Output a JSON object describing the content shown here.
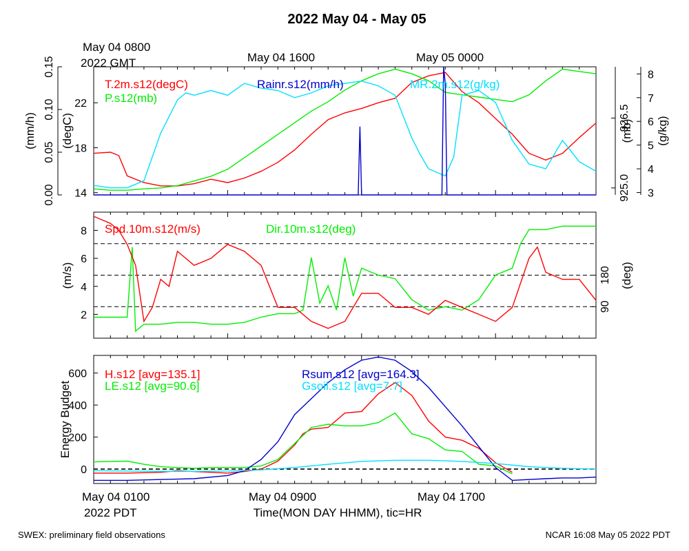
{
  "title": "2022 May 04 - May 05",
  "top_axis": {
    "start_label_line1": "May 04 0800",
    "start_label_line2": "2022 GMT",
    "tick_labels": [
      "May 04 1600",
      "May 05 0000"
    ]
  },
  "bottom_axis": {
    "start_label_line1": "May 04 0100",
    "start_label_line2": "2022 PDT",
    "tick_labels": [
      "May 04 0900",
      "May 04 1700"
    ],
    "xlabel": "Time(MON DAY HHMM), tic=HR"
  },
  "footer": {
    "left": "SWEX: preliminary field observations",
    "right": "NCAR 16:08 May 05 2022 PDT"
  },
  "colors": {
    "red": "#ff0000",
    "green": "#00ee00",
    "blue": "#0000cc",
    "cyan": "#00e0ff",
    "frame": "#000000"
  },
  "chart_data": [
    {
      "type": "line",
      "panel": "meteorology",
      "x_unit": "hours since May 04 0100 PDT",
      "x_range": [
        0,
        30
      ],
      "series": [
        {
          "name": "T.2m.s12(degC)",
          "axis": "degC",
          "color": "red",
          "x": [
            0,
            1,
            1.5,
            2,
            3,
            4,
            5,
            6,
            7,
            8,
            9,
            10,
            11,
            12,
            13,
            14,
            15,
            16,
            17,
            18,
            19,
            20,
            21,
            22,
            23,
            24,
            25,
            26,
            27,
            28,
            29,
            30
          ],
          "y": [
            17.5,
            17.6,
            17.3,
            15.5,
            14.9,
            14.6,
            14.6,
            14.8,
            15.2,
            14.9,
            15.3,
            15.9,
            16.7,
            17.8,
            19.2,
            20.5,
            21.1,
            21.5,
            22.0,
            22.4,
            23.8,
            24.4,
            24.7,
            23.0,
            22.0,
            20.6,
            19.2,
            17.5,
            16.9,
            17.5,
            18.9,
            20.2
          ]
        },
        {
          "name": "P.s12(mb)",
          "axis": "mb",
          "color": "green",
          "x": [
            0,
            1,
            2,
            3,
            4,
            5,
            6,
            7,
            8,
            9,
            10,
            11,
            12,
            13,
            14,
            15,
            16,
            17,
            17.5,
            18,
            19,
            20,
            21,
            22,
            23,
            24,
            25,
            26,
            27,
            28,
            29,
            30
          ],
          "y": [
            924.98,
            924.95,
            924.95,
            924.98,
            925.0,
            925.05,
            925.15,
            925.25,
            925.4,
            925.65,
            925.9,
            926.15,
            926.4,
            926.65,
            926.85,
            927.1,
            927.3,
            927.45,
            927.5,
            927.55,
            927.45,
            927.3,
            927.05,
            927.0,
            926.95,
            926.9,
            926.85,
            927.0,
            927.3,
            927.55,
            927.5,
            927.45
          ]
        },
        {
          "name": "MR.2m.s12(g/kg)",
          "axis": "g/kg",
          "color": "cyan",
          "x": [
            0,
            1,
            2,
            3,
            4,
            5,
            5.5,
            6,
            7,
            8,
            9,
            10,
            11,
            12,
            13,
            14,
            15,
            16,
            17,
            18,
            19,
            19.5,
            20,
            21,
            21.5,
            22,
            23,
            24,
            25,
            26,
            27,
            28,
            29,
            30
          ],
          "y": [
            3.3,
            3.2,
            3.2,
            3.5,
            5.5,
            6.9,
            7.2,
            7.1,
            7.3,
            7.1,
            7.6,
            7.4,
            7.3,
            7.0,
            7.2,
            7.5,
            7.6,
            7.7,
            7.5,
            7.1,
            5.3,
            4.6,
            4.0,
            3.7,
            4.5,
            7.1,
            7.3,
            6.8,
            5.2,
            4.2,
            4.0,
            5.2,
            4.3,
            3.9
          ]
        },
        {
          "name": "Rainr.s12(mm/h)",
          "axis": "mm/h",
          "color": "blue",
          "x": [
            0,
            15.8,
            15.9,
            16.0,
            20.8,
            20.9,
            21.0,
            21.1,
            30
          ],
          "y": [
            0,
            0,
            0.08,
            0,
            0,
            0.15,
            0.13,
            0,
            0
          ]
        }
      ],
      "left_axes": [
        {
          "label": "(mm/h)",
          "range": [
            0,
            0.15
          ],
          "ticks": [
            "0.00",
            "0.05",
            "0.10",
            "0.15"
          ]
        },
        {
          "label": "(degC)",
          "range": [
            13.8,
            25.2
          ],
          "ticks": [
            "14",
            "18",
            "22"
          ]
        }
      ],
      "right_axes": [
        {
          "label": "(mb)",
          "range": [
            924.85,
            927.6
          ],
          "ticks": [
            "925.0",
            "926.5"
          ]
        },
        {
          "label": "(g/kg)",
          "range": [
            2.9,
            8.3
          ],
          "ticks": [
            "3",
            "4",
            "5",
            "6",
            "7",
            "8"
          ]
        }
      ],
      "grid": false
    },
    {
      "type": "line",
      "panel": "wind",
      "x_unit": "hours since May 04 0100 PDT",
      "x_range": [
        0,
        30
      ],
      "series": [
        {
          "name": "Spd.10m.s12(m/s)",
          "axis": "m/s",
          "color": "red",
          "x": [
            0,
            1,
            1.5,
            2,
            2.5,
            3,
            3.5,
            4,
            4.5,
            5,
            6,
            7,
            8,
            9,
            10,
            11,
            12,
            13,
            14,
            15,
            16,
            17,
            18,
            19,
            20,
            21,
            22,
            23,
            24,
            25,
            26,
            26.5,
            27,
            28,
            29,
            30
          ],
          "y": [
            9.0,
            8.5,
            8.0,
            7.0,
            5.5,
            1.5,
            2.5,
            4.5,
            4.0,
            6.5,
            5.5,
            6.0,
            7.0,
            6.5,
            5.5,
            2.5,
            2.5,
            1.5,
            1.0,
            1.5,
            3.5,
            3.5,
            2.5,
            2.5,
            2.0,
            3.0,
            2.5,
            2.0,
            1.5,
            2.5,
            6.0,
            6.8,
            5.0,
            4.5,
            4.5,
            3.0
          ]
        },
        {
          "name": "Dir.10m.s12(deg)",
          "axis": "deg",
          "color": "green",
          "x": [
            0,
            1,
            2,
            2.3,
            2.5,
            3,
            4,
            5,
            6,
            7,
            8,
            9,
            10,
            11,
            12,
            12.5,
            13,
            13.5,
            14,
            14.5,
            15,
            15.5,
            16,
            17,
            18,
            19,
            20,
            21,
            22,
            23,
            24,
            25,
            25.5,
            26,
            27,
            28,
            29,
            30
          ],
          "y": [
            60,
            60,
            60,
            260,
            20,
            40,
            40,
            45,
            45,
            40,
            40,
            45,
            60,
            70,
            70,
            80,
            230,
            100,
            150,
            80,
            230,
            120,
            200,
            180,
            170,
            110,
            80,
            90,
            80,
            110,
            180,
            200,
            270,
            310,
            310,
            320,
            320,
            320
          ]
        }
      ],
      "left_axes": [
        {
          "label": "(m/s)",
          "range": [
            0.3,
            9.3
          ],
          "ticks": [
            "2",
            "4",
            "6",
            "8"
          ]
        }
      ],
      "right_axes": [
        {
          "label": "(deg)",
          "range": [
            0,
            360
          ],
          "ticks": [
            "90",
            "180"
          ]
        }
      ],
      "reference_lines_deg": [
        90,
        180,
        270
      ]
    },
    {
      "type": "line",
      "panel": "energy",
      "x_unit": "hours since May 04 0100 PDT",
      "x_range": [
        0,
        30
      ],
      "ylabel": "Energy Budget",
      "y_range": [
        -90,
        710
      ],
      "y_ticks": [
        "0",
        "200",
        "400",
        "600"
      ],
      "reference_lines": [
        0
      ],
      "series": [
        {
          "name": "H.s12",
          "avg_label": "[avg=135.1]",
          "color": "red",
          "x": [
            0,
            2,
            4,
            5,
            6,
            7,
            8,
            9,
            10,
            11,
            12,
            12.5,
            13,
            14,
            15,
            16,
            17,
            18,
            19,
            20,
            21,
            22,
            23,
            24,
            25
          ],
          "y": [
            -25,
            -25,
            -20,
            -10,
            -15,
            -20,
            -25,
            -15,
            0,
            50,
            150,
            220,
            250,
            260,
            350,
            360,
            470,
            540,
            460,
            300,
            200,
            180,
            130,
            40,
            -20
          ]
        },
        {
          "name": "LE.s12",
          "avg_label": "[avg=90.6]",
          "color": "green",
          "x": [
            0,
            2,
            3,
            4,
            5,
            6,
            7,
            8,
            9,
            10,
            11,
            12,
            13,
            14,
            15,
            16,
            17,
            18,
            19,
            20,
            21,
            22,
            23,
            24,
            25
          ],
          "y": [
            45,
            50,
            30,
            15,
            10,
            5,
            10,
            10,
            10,
            20,
            60,
            160,
            260,
            280,
            270,
            270,
            290,
            350,
            220,
            190,
            120,
            110,
            30,
            20,
            -30
          ]
        },
        {
          "name": "Rsum.s12",
          "avg_label": "[avg=164.3]",
          "color": "blue",
          "x": [
            0,
            2,
            4,
            6,
            8,
            9,
            10,
            11,
            12,
            13,
            14,
            15,
            16,
            17,
            18,
            19,
            20,
            21,
            22,
            23,
            24,
            25,
            26,
            27,
            28,
            29,
            30
          ],
          "y": [
            -70,
            -70,
            -65,
            -60,
            -40,
            -10,
            60,
            170,
            340,
            440,
            540,
            620,
            680,
            700,
            680,
            610,
            510,
            390,
            270,
            140,
            10,
            -70,
            -65,
            -60,
            -55,
            -55,
            -50
          ]
        },
        {
          "name": "Gsoil.s12",
          "avg_label": "[avg=7.7]",
          "color": "cyan",
          "x": [
            0,
            2,
            4,
            6,
            8,
            10,
            12,
            14,
            16,
            18,
            20,
            22,
            24,
            26,
            28,
            30
          ],
          "y": [
            -10,
            -12,
            -14,
            -14,
            -12,
            -5,
            10,
            30,
            48,
            55,
            55,
            48,
            35,
            15,
            5,
            0
          ]
        }
      ]
    }
  ]
}
